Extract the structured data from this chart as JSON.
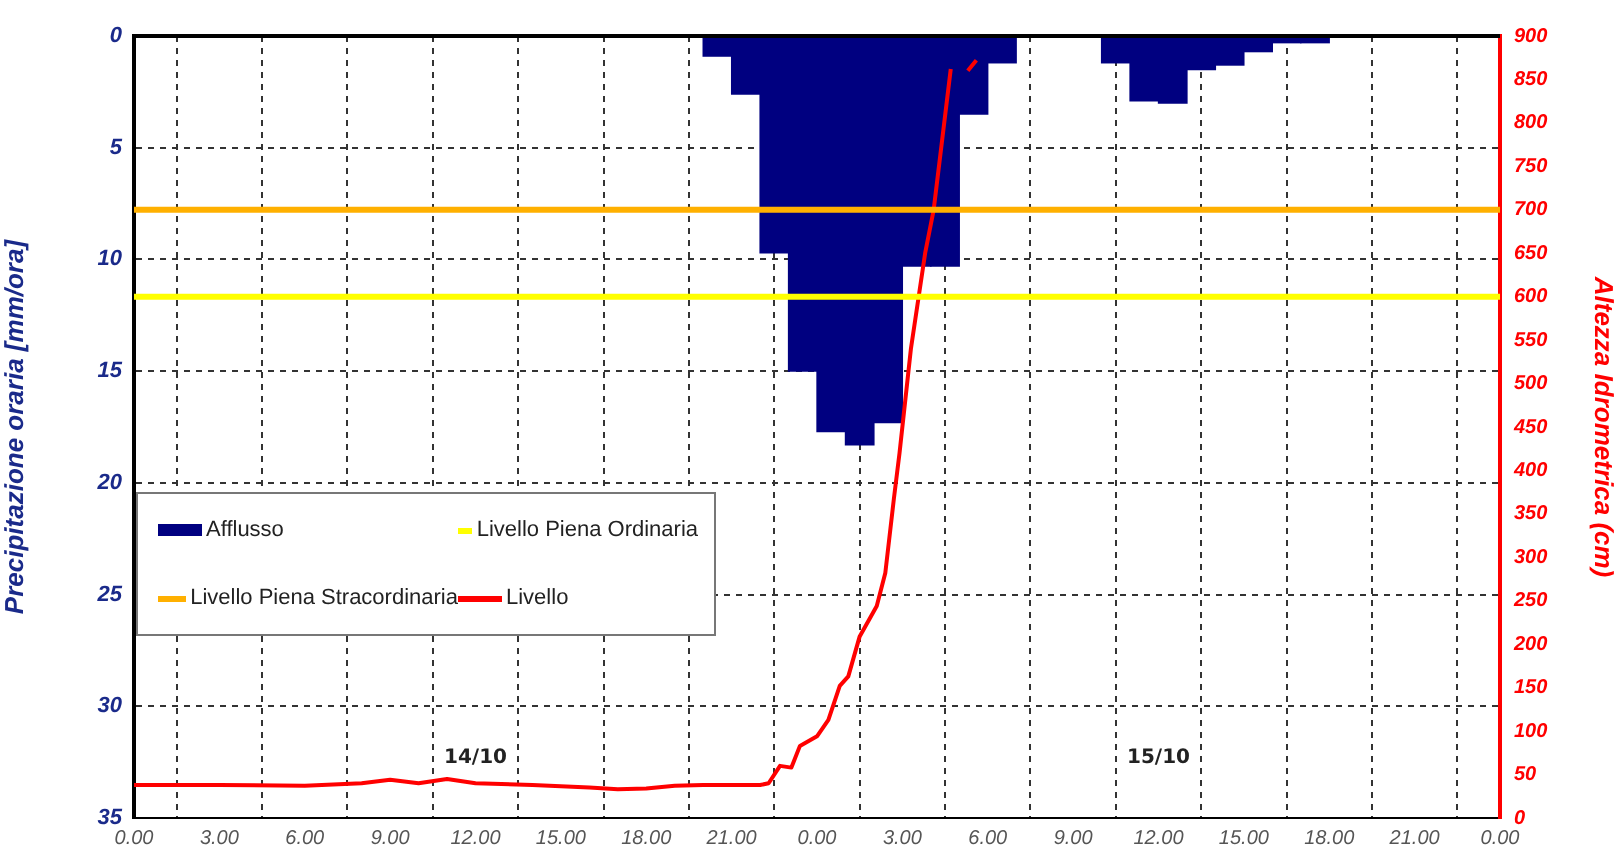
{
  "chart_data": {
    "type": "bar",
    "ylabel": "Precipitazione oraria [mm/ora]",
    "y2label": "Altezza Idrometrica (cm)",
    "xlim": [
      "--10-14T00:00",
      "--10-16T00:00"
    ],
    "xticks": [
      {
        "value": "--10-14T00:00",
        "label": "0.00"
      },
      {
        "value": "--10-14T03:00",
        "label": "3.00"
      },
      {
        "value": "--10-14T06:00",
        "label": "6.00"
      },
      {
        "value": "--10-14T09:00",
        "label": "9.00"
      },
      {
        "value": "--10-14T12:00",
        "label": "12.00"
      },
      {
        "value": "--10-14T15:00",
        "label": "15.00"
      },
      {
        "value": "--10-14T18:00",
        "label": "18.00"
      },
      {
        "value": "--10-14T21:00",
        "label": "21.00"
      },
      {
        "value": "--10-15T00:00",
        "label": "0.00"
      },
      {
        "value": "--10-15T03:00",
        "label": "3.00"
      },
      {
        "value": "--10-15T06:00",
        "label": "6.00"
      },
      {
        "value": "--10-15T09:00",
        "label": "9.00"
      },
      {
        "value": "--10-15T12:00",
        "label": "12.00"
      },
      {
        "value": "--10-15T15:00",
        "label": "15.00"
      },
      {
        "value": "--10-15T18:00",
        "label": "18.00"
      },
      {
        "value": "--10-15T21:00",
        "label": "21.00"
      },
      {
        "value": "--10-16T00:00",
        "label": "0.00"
      }
    ],
    "ylim": [
      35,
      0
    ],
    "yticks": [
      0,
      5,
      10,
      15,
      20,
      25,
      30,
      35
    ],
    "y2lim": [
      0,
      900
    ],
    "y2ticks": [
      0,
      50,
      100,
      150,
      200,
      250,
      300,
      350,
      400,
      450,
      500,
      550,
      600,
      650,
      700,
      750,
      800,
      850,
      900
    ],
    "grid": true,
    "legend": "left",
    "series": [
      {
        "name": "Afflusso",
        "color": "#000080",
        "x": [
          "--10-14T20:30",
          "--10-14T21:30",
          "--10-14T22:30",
          "--10-14T23:30",
          "--10-15T00:30",
          "--10-15T01:30",
          "--10-15T02:30",
          "--10-15T03:30",
          "--10-15T04:30",
          "--10-15T05:30",
          "--10-15T06:30",
          "--10-15T07:30",
          "--10-15T08:30",
          "--10-15T09:30",
          "--10-15T10:30",
          "--10-15T11:30",
          "--10-15T12:30",
          "--10-15T13:30",
          "--10-15T14:30",
          "--10-15T15:30",
          "--10-15T16:30",
          "--10-15T17:30"
        ],
        "values": [
          0.9,
          2.6,
          9.7,
          15.0,
          17.7,
          18.3,
          17.3,
          10.3,
          10.3,
          3.5,
          1.2,
          0,
          null,
          null,
          1.2,
          2.9,
          3.0,
          1.5,
          1.3,
          0.7,
          0.3,
          0.3
        ]
      },
      {
        "type": "line",
        "name": "Livello",
        "color": "#ff0000",
        "axis": "y2",
        "x": [
          "--10-14T00:00",
          "--10-14T03:00",
          "--10-14T06:00",
          "--10-14T08:00",
          "--10-14T09:00",
          "--10-14T10:00",
          "--10-14T11:00",
          "--10-14T12:00",
          "--10-14T14:00",
          "--10-14T16:00",
          "--10-14T17:00",
          "--10-14T18:00",
          "--10-14T19:00",
          "--10-14T20:00",
          "--10-14T21:00",
          "--10-14T22:00",
          "--10-14T22:18",
          "--10-14T22:42",
          "--10-14T23:06",
          "--10-14T23:24",
          "--10-15T00:00",
          "--10-15T00:24",
          "--10-15T00:48",
          "--10-15T01:06",
          "--10-15T01:30",
          "--10-15T02:06",
          "--10-15T02:24",
          "--10-15T02:42",
          "--10-15T02:54",
          "--10-15T03:18",
          "--10-15T03:48",
          "--10-15T04:06",
          "--10-15T04:42",
          "--10-15T05:00",
          "--10-15T05:18",
          "--10-15T05:36"
        ],
        "values": [
          38,
          38,
          37,
          40,
          44,
          40,
          45,
          40,
          38,
          35,
          33,
          34,
          37,
          38,
          38,
          38,
          40,
          60,
          58,
          83,
          94,
          113,
          152,
          163,
          209,
          244,
          282,
          367,
          420,
          540,
          650,
          700,
          862,
          null,
          860,
          872
        ]
      }
    ],
    "ref_lines": [
      {
        "axis": "y2",
        "value": 600,
        "label": "Livello Piena Ordinaria",
        "color": "#ffff00"
      },
      {
        "axis": "y2",
        "value": 700,
        "label": "Livello Piena Stracordinaria",
        "color": "#ffb000"
      }
    ],
    "annotations": [
      "14/10",
      "15/10"
    ]
  }
}
